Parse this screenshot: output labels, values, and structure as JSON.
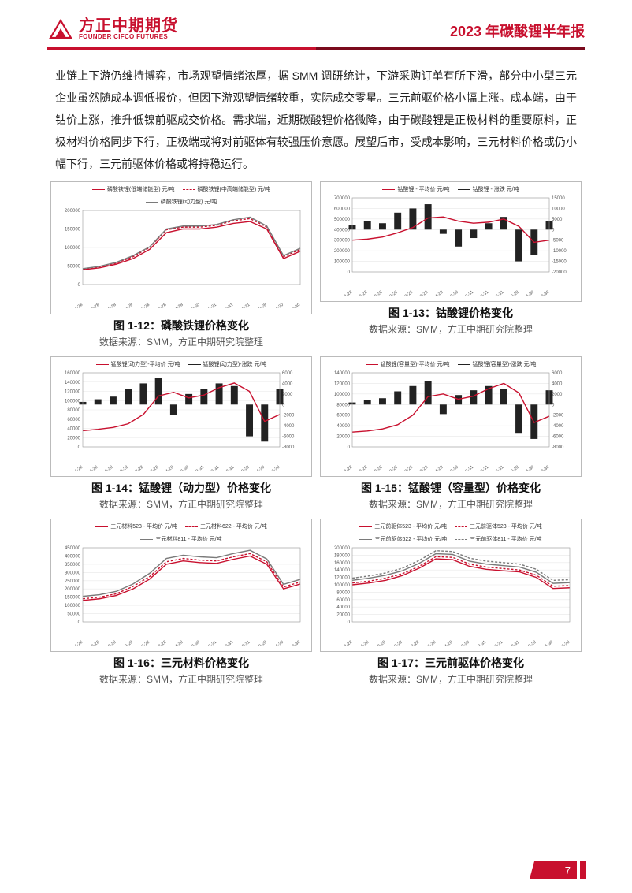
{
  "header": {
    "logo_cn": "方正中期期货",
    "logo_en": "FOUNDER CIFCO FUTURES",
    "title": "2023 年碳酸锂半年报"
  },
  "paragraph": "业链上下游仍维持博弈，市场观望情绪浓厚，据 SMM 调研统计，下游采购订单有所下滑，部分中小型三元企业虽然随成本调低报价，但因下游观望情绪较重，实际成交零星。三元前驱价格小幅上涨。成本端，由于钴价上涨，推升低镍前驱成交价格。需求端，近期碳酸锂价格微降，由于碳酸锂是正极材料的重要原料，正极材料价格同步下行，正极端或将对前驱体有较强压价意愿。展望后市，受成本影响，三元材料价格或仍小幅下行，三元前驱体价格或将持稳运行。",
  "dates": [
    "2021-04-28",
    "2021-06-28",
    "2021-08-28",
    "2021-10-28",
    "2021-12-28",
    "2022-02-28",
    "2022-04-28",
    "2022-06-30",
    "2022-08-31",
    "2022-10-31",
    "2022-12-31",
    "2023-02-28",
    "2023-04-30",
    "2023-06-30"
  ],
  "colors": {
    "red": "#c8102e",
    "dark": "#222222",
    "gray": "#7a7a7a",
    "grid": "#e8e8e8",
    "red_dash": "#c8102e"
  },
  "charts": {
    "c12": {
      "title": "图 1-12：磷酸铁锂价格变化",
      "source": "数据来源：SMM，方正中期研究院整理",
      "legend": [
        {
          "label": "磷酸铁锂(低端储能型) 元/吨",
          "color": "#c8102e",
          "dash": false
        },
        {
          "label": "磷酸铁锂(中高端储能型) 元/吨",
          "color": "#c8102e",
          "dash": true
        },
        {
          "label": "磷酸铁锂(动力型) 元/吨",
          "color": "#7a7a7a",
          "dash": false
        }
      ],
      "ylim": [
        0,
        200000
      ],
      "ytick": 50000,
      "series": [
        {
          "color": "#c8102e",
          "dash": false,
          "data": [
            40000,
            45000,
            55000,
            70000,
            95000,
            140000,
            150000,
            150000,
            155000,
            165000,
            170000,
            150000,
            70000,
            90000
          ]
        },
        {
          "color": "#c8102e",
          "dash": true,
          "data": [
            42000,
            48000,
            58000,
            75000,
            100000,
            148000,
            155000,
            155000,
            160000,
            172000,
            178000,
            155000,
            75000,
            95000
          ]
        },
        {
          "color": "#7a7a7a",
          "dash": false,
          "data": [
            43000,
            49000,
            60000,
            78000,
            102000,
            150000,
            158000,
            158000,
            162000,
            175000,
            182000,
            158000,
            78000,
            98000
          ]
        }
      ]
    },
    "c13": {
      "title": "图 1-13：钴酸锂价格变化",
      "source": "数据来源：SMM，方正中期研究院整理",
      "legend": [
        {
          "label": "钴酸锂 - 平均价 元/吨",
          "color": "#c8102e",
          "dash": false
        },
        {
          "label": "钴酸锂 - 涨跌 元/吨",
          "color": "#222222",
          "dash": false
        }
      ],
      "ylim": [
        0,
        700000
      ],
      "ytick": 100000,
      "ylim2": [
        -20000,
        15000
      ],
      "ytick2": 5000,
      "series": [
        {
          "color": "#c8102e",
          "dash": false,
          "axis": "left",
          "data": [
            300000,
            310000,
            330000,
            370000,
            420000,
            510000,
            520000,
            480000,
            460000,
            470000,
            500000,
            430000,
            280000,
            300000
          ]
        }
      ],
      "bars": {
        "color": "#222222",
        "axis": "right",
        "data": [
          2000,
          4000,
          3000,
          8000,
          10000,
          12000,
          -2000,
          -8000,
          -4000,
          3000,
          6000,
          -15000,
          -12000,
          4000
        ]
      }
    },
    "c14": {
      "title": "图 1-14：锰酸锂（动力型）价格变化",
      "source": "数据来源：SMM，方正中期研究院整理",
      "legend": [
        {
          "label": "锰酸锂(动力型)-平均价 元/吨",
          "color": "#c8102e",
          "dash": false
        },
        {
          "label": "锰酸锂(动力型)-涨跌 元/吨",
          "color": "#222222",
          "dash": false
        }
      ],
      "ylim": [
        0,
        160000
      ],
      "ytick": 20000,
      "ylim2": [
        -8000,
        6000
      ],
      "ytick2": 2000,
      "series": [
        {
          "color": "#c8102e",
          "dash": false,
          "axis": "left",
          "data": [
            35000,
            38000,
            42000,
            50000,
            70000,
            110000,
            118000,
            106000,
            112000,
            128000,
            138000,
            120000,
            55000,
            70000
          ]
        }
      ],
      "bars": {
        "color": "#222222",
        "axis": "right",
        "data": [
          500,
          1000,
          1500,
          3000,
          4000,
          5000,
          -2000,
          2000,
          3000,
          4000,
          3500,
          -6000,
          -7000,
          3000
        ]
      }
    },
    "c15": {
      "title": "图 1-15：锰酸锂（容量型）价格变化",
      "source": "数据来源：SMM，方正中期研究院整理",
      "legend": [
        {
          "label": "锰酸锂(容量型)-平均价 元/吨",
          "color": "#c8102e",
          "dash": false
        },
        {
          "label": "锰酸锂(容量型)-涨跌 元/吨",
          "color": "#222222",
          "dash": false
        }
      ],
      "ylim": [
        0,
        140000
      ],
      "ytick": 20000,
      "ylim2": [
        -8000,
        6000
      ],
      "ytick2": 2000,
      "series": [
        {
          "color": "#c8102e",
          "dash": false,
          "axis": "left",
          "data": [
            28000,
            30000,
            34000,
            42000,
            60000,
            95000,
            100000,
            90000,
            96000,
            110000,
            120000,
            102000,
            46000,
            58000
          ]
        }
      ],
      "bars": {
        "color": "#222222",
        "axis": "right",
        "data": [
          400,
          800,
          1200,
          2500,
          3500,
          4500,
          -1800,
          1800,
          2700,
          3500,
          3000,
          -5500,
          -6500,
          2700
        ]
      }
    },
    "c16": {
      "title": "图 1-16：三元材料价格变化",
      "source": "数据来源：SMM，方正中期研究院整理",
      "legend": [
        {
          "label": "三元材料523 - 平均价 元/吨",
          "color": "#c8102e",
          "dash": false
        },
        {
          "label": "三元材料622 - 平均价 元/吨",
          "color": "#c8102e",
          "dash": true
        },
        {
          "label": "三元材料811 - 平均价 元/吨",
          "color": "#7a7a7a",
          "dash": false
        }
      ],
      "ylim": [
        0,
        450000
      ],
      "ytick": 50000,
      "series": [
        {
          "color": "#c8102e",
          "dash": false,
          "data": [
            130000,
            140000,
            160000,
            200000,
            260000,
            350000,
            370000,
            360000,
            355000,
            380000,
            400000,
            350000,
            200000,
            230000
          ]
        },
        {
          "color": "#c8102e",
          "dash": true,
          "data": [
            140000,
            150000,
            170000,
            215000,
            275000,
            365000,
            385000,
            375000,
            370000,
            395000,
            415000,
            365000,
            212000,
            242000
          ]
        },
        {
          "color": "#7a7a7a",
          "dash": false,
          "data": [
            155000,
            165000,
            185000,
            230000,
            295000,
            385000,
            405000,
            395000,
            390000,
            415000,
            435000,
            382000,
            228000,
            258000
          ]
        }
      ]
    },
    "c17": {
      "title": "图 1-17：三元前驱体价格变化",
      "source": "数据来源：SMM，方正中期研究院整理",
      "legend": [
        {
          "label": "三元前驱体523 - 平均价 元/吨",
          "color": "#c8102e",
          "dash": false
        },
        {
          "label": "三元前驱体523 - 平均价 元/吨",
          "color": "#c8102e",
          "dash": true
        },
        {
          "label": "三元前驱体622 - 平均价 元/吨",
          "color": "#7a7a7a",
          "dash": false
        },
        {
          "label": "三元前驱体811 - 平均价 元/吨",
          "color": "#7a7a7a",
          "dash": true
        }
      ],
      "ylim": [
        0,
        200000
      ],
      "ytick": 20000,
      "series": [
        {
          "color": "#c8102e",
          "dash": false,
          "data": [
            100000,
            105000,
            112000,
            125000,
            145000,
            170000,
            168000,
            150000,
            142000,
            138000,
            135000,
            120000,
            90000,
            92000
          ]
        },
        {
          "color": "#c8102e",
          "dash": true,
          "data": [
            105000,
            110000,
            118000,
            130000,
            150000,
            176000,
            174000,
            156000,
            148000,
            144000,
            140000,
            126000,
            96000,
            98000
          ]
        },
        {
          "color": "#7a7a7a",
          "dash": false,
          "data": [
            112000,
            118000,
            126000,
            138000,
            158000,
            184000,
            182000,
            164000,
            156000,
            152000,
            148000,
            134000,
            104000,
            106000
          ]
        },
        {
          "color": "#7a7a7a",
          "dash": true,
          "data": [
            118000,
            124000,
            132000,
            145000,
            166000,
            192000,
            190000,
            172000,
            164000,
            160000,
            156000,
            142000,
            112000,
            114000
          ]
        }
      ]
    }
  },
  "page_number": "7"
}
